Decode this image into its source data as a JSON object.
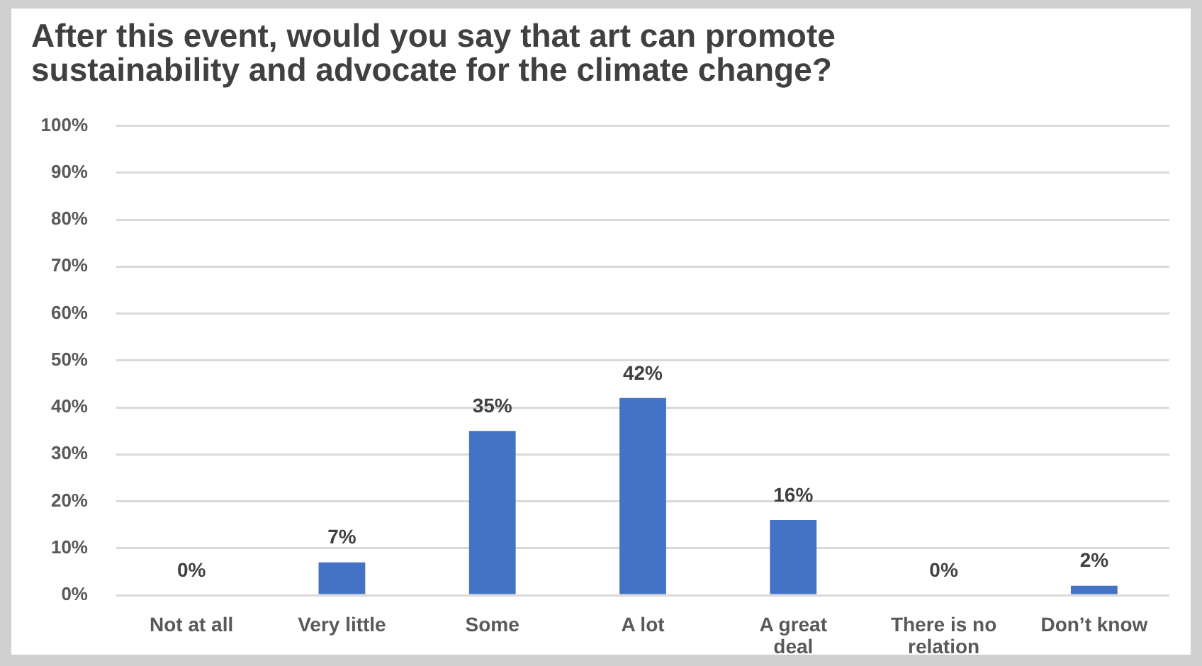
{
  "chart_data": {
    "type": "bar",
    "title": "After this event, would you say that art can promote sustainability and advocate for the climate change?",
    "categories": [
      "Not at all",
      "Very little",
      "Some",
      "A lot",
      "A great deal",
      "There is no relation",
      "Don’t know"
    ],
    "values": [
      0,
      7,
      35,
      42,
      16,
      0,
      2
    ],
    "value_labels": [
      "0%",
      "7%",
      "35%",
      "42%",
      "16%",
      "0%",
      "2%"
    ],
    "color": "#4472c4",
    "ylim": [
      0,
      100
    ],
    "yticks": [
      {
        "value": 0,
        "label": "0%"
      },
      {
        "value": 10,
        "label": "10%"
      },
      {
        "value": 20,
        "label": "20%"
      },
      {
        "value": 30,
        "label": "30%"
      },
      {
        "value": 40,
        "label": "40%"
      },
      {
        "value": 50,
        "label": "50%"
      },
      {
        "value": 60,
        "label": "60%"
      },
      {
        "value": 70,
        "label": "70%"
      },
      {
        "value": 80,
        "label": "80%"
      },
      {
        "value": 90,
        "label": "90%"
      },
      {
        "value": 100,
        "label": "100%"
      }
    ],
    "grid": "y"
  }
}
